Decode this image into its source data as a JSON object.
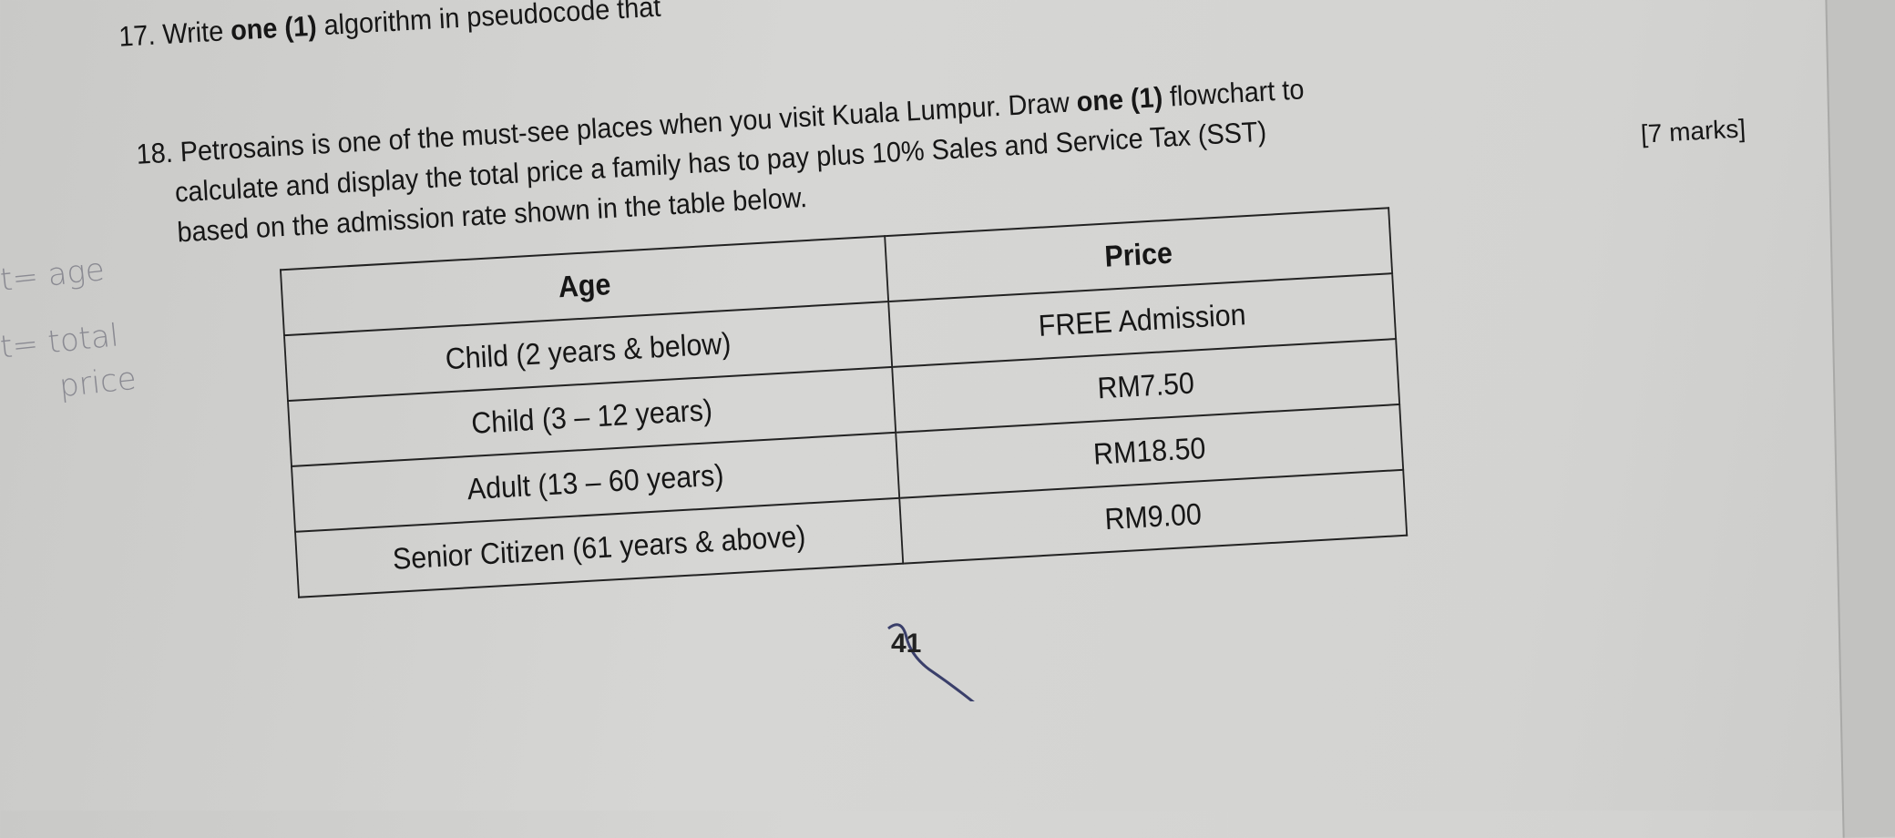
{
  "question17": {
    "number": "17.",
    "text_before": "Write ",
    "bold": "one (1)",
    "text_after": " algorithm in pseudocode that"
  },
  "question18": {
    "number": "18.",
    "line1_before": "Petrosains is one of the must-see places when you visit Kuala Lumpur. Draw ",
    "line1_bold": "one (1)",
    "line1_after": " flowchart to",
    "line2": "calculate and display the total price a family has to pay plus 10% Sales and Service Tax (SST)",
    "line3": "based on the admission rate shown in the table below.",
    "marks": "[7 marks]"
  },
  "table": {
    "headers": [
      "Age",
      "Price"
    ],
    "rows": [
      {
        "age": "Child (2 years & below)",
        "price": "FREE Admission"
      },
      {
        "age": "Child (3 – 12 years)",
        "price": "RM7.50"
      },
      {
        "age": "Adult (13 – 60 years)",
        "price": "RM18.50"
      },
      {
        "age": "Senior Citizen (61 years & above)",
        "price": "RM9.00"
      }
    ]
  },
  "handwritten_notes": [
    "t= age",
    "t= total",
    "price"
  ],
  "page_number": "41"
}
